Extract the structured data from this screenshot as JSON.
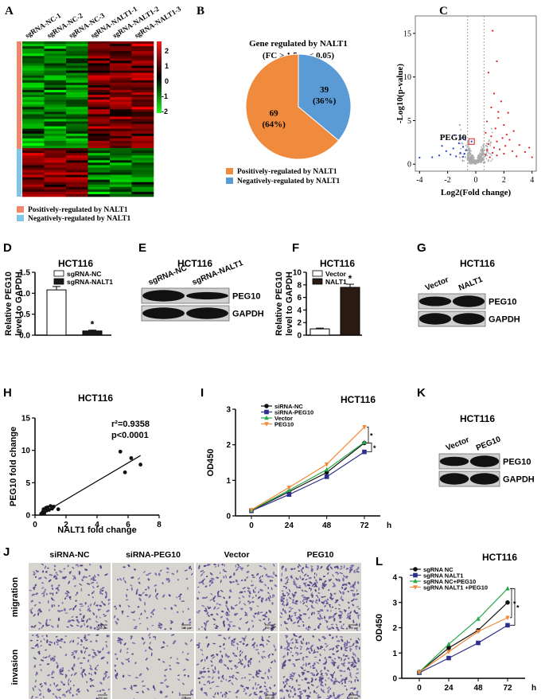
{
  "panel_labels": {
    "A": "A",
    "B": "B",
    "C": "C",
    "D": "D",
    "E": "E",
    "F": "F",
    "G": "G",
    "H": "H",
    "I": "I",
    "J": "J",
    "K": "K",
    "L": "L"
  },
  "heatmap": {
    "columns": [
      "sgRNA-NC-1",
      "sgRNA-NC-2",
      "sgRNA-NC-3",
      "sgRNA-NALT1-1",
      "sgRNA-NALT1-2",
      "sgRNA-NALT1-3"
    ],
    "scale_ticks": [
      "2",
      "1",
      "0",
      "-1",
      "-2"
    ],
    "legend": [
      {
        "label": "Positively-regulated by NALT1",
        "color": "#f0866a"
      },
      {
        "label": "Negatively-regulated by NALT1",
        "color": "#7fc6e8"
      }
    ],
    "colors": {
      "high": "#ff1a1a",
      "low": "#1aff1a",
      "mid": "#000000"
    }
  },
  "pie": {
    "title_line1": "Gene regulated by NALT1",
    "title_line2": "(FC > 1.5, p < 0.05)",
    "legend": [
      {
        "label": "Positively-regulated by NALT1",
        "color": "#f08a3c"
      },
      {
        "label": "Negatively-regulated by NALT1",
        "color": "#5b9bd5"
      }
    ]
  },
  "volcano_text": {
    "peg10_label": "PEG10"
  },
  "blots": {
    "E": {
      "title": "HCT116",
      "lanes": [
        "sgRNA-NC",
        "sgRNA-NALT1"
      ],
      "rows": [
        "PEG10",
        "GAPDH"
      ]
    },
    "G": {
      "title": "HCT116",
      "lanes": [
        "Vector",
        "NALT1"
      ],
      "rows": [
        "PEG10",
        "GAPDH"
      ]
    },
    "K": {
      "title": "HCT116",
      "lanes": [
        "Vector",
        "PEG10"
      ],
      "rows": [
        "PEG10",
        "GAPDH"
      ]
    }
  },
  "transwell": {
    "columns": [
      "siRNA-NC",
      "siRNA-PEG10",
      "Vector",
      "PEG10"
    ],
    "rows": [
      "migration",
      "invasion"
    ],
    "scale_bar": "200 μm",
    "density": [
      0.55,
      0.25,
      0.6,
      0.95,
      0.5,
      0.2,
      0.55,
      0.9
    ]
  },
  "star": "*",
  "chart_data": [
    {
      "id": "A",
      "type": "heatmap",
      "title": "",
      "columns": [
        "sgRNA-NC-1",
        "sgRNA-NC-2",
        "sgRNA-NC-3",
        "sgRNA-NALT1-1",
        "sgRNA-NALT1-2",
        "sgRNA-NALT1-3"
      ],
      "row_groups": [
        {
          "name": "Positively-regulated by NALT1",
          "count": 69
        },
        {
          "name": "Negatively-regulated by NALT1",
          "count": 39
        }
      ],
      "color_range": [
        -2,
        2
      ]
    },
    {
      "id": "B",
      "type": "pie",
      "title": "Gene regulated by NALT1",
      "subtitle": "(FC > 1.5, p < 0.05)",
      "slices": [
        {
          "label": "Positively-regulated by NALT1",
          "value": 69,
          "percent_label": "(64%)",
          "value_label": "69"
        },
        {
          "label": "Negatively-regulated by NALT1",
          "value": 39,
          "percent_label": "(36%)",
          "value_label": "39"
        }
      ]
    },
    {
      "id": "C",
      "type": "scatter",
      "title": "",
      "xlabel": "Log2(Fold change)",
      "ylabel": "-Log10(p-value)",
      "xlim": [
        -4.3,
        4.3
      ],
      "ylim": [
        -0.8,
        17
      ],
      "xticks": [
        -4,
        -2,
        0,
        2,
        4
      ],
      "yticks": [
        0,
        5,
        10,
        15
      ],
      "threshold_x": [
        -0.58,
        0.58
      ],
      "highlight": {
        "name": "PEG10",
        "x": -0.3,
        "y": 2.6
      },
      "series": [
        {
          "name": "",
          "color": "#e02020",
          "points": [
            [
              1.2,
              15.3
            ],
            [
              1.5,
              11.8
            ],
            [
              0.9,
              10.5
            ],
            [
              1.3,
              8.1
            ],
            [
              1.8,
              7.2
            ],
            [
              1.1,
              6.5
            ],
            [
              2.3,
              5.9
            ],
            [
              1.6,
              5.3
            ],
            [
              0.8,
              4.9
            ],
            [
              2.0,
              4.5
            ],
            [
              1.4,
              4.1
            ],
            [
              2.7,
              3.8
            ],
            [
              0.7,
              3.6
            ],
            [
              1.1,
              3.2
            ],
            [
              1.9,
              3.0
            ],
            [
              2.4,
              2.8
            ],
            [
              1.5,
              2.6
            ],
            [
              0.9,
              2.3
            ],
            [
              3.1,
              2.2
            ],
            [
              2.1,
              2.1
            ],
            [
              1.3,
              1.9
            ],
            [
              1.7,
              1.7
            ],
            [
              0.8,
              1.6
            ],
            [
              2.6,
              1.5
            ],
            [
              3.5,
              1.4
            ],
            [
              1.2,
              1.3
            ],
            [
              2.0,
              1.2
            ],
            [
              0.7,
              1.1
            ],
            [
              1.5,
              1.0
            ],
            [
              2.9,
              0.9
            ],
            [
              4.0,
              0.8
            ],
            [
              1.0,
              0.8
            ],
            [
              3.8,
              1.9
            ],
            [
              2.2,
              3.4
            ],
            [
              1.6,
              6.0
            ]
          ]
        },
        {
          "name": "",
          "color": "#2040d0",
          "points": [
            [
              -0.3,
              2.6
            ],
            [
              -1.2,
              2.4
            ],
            [
              -0.9,
              2.0
            ],
            [
              -1.6,
              1.8
            ],
            [
              -0.7,
              1.6
            ],
            [
              -2.1,
              1.5
            ],
            [
              -1.1,
              1.3
            ],
            [
              -0.8,
              1.2
            ],
            [
              -1.8,
              1.1
            ],
            [
              -2.6,
              1.0
            ],
            [
              -1.4,
              0.9
            ],
            [
              -0.9,
              0.85
            ],
            [
              -3.1,
              0.8
            ],
            [
              -4.0,
              0.75
            ],
            [
              -1.0,
              3.0
            ],
            [
              -2.4,
              2.1
            ],
            [
              -1.5,
              3.3
            ],
            [
              -0.75,
              2.8
            ]
          ]
        }
      ]
    },
    {
      "id": "D",
      "type": "bar",
      "title": "HCT116",
      "ylabel": "Relative PEG10 level to GAPDH",
      "categories": [
        "sgRNA-NC",
        "sgRNA-NALT1"
      ],
      "values": [
        1.08,
        0.1
      ],
      "errors": [
        0.08,
        0.02
      ],
      "ylim": [
        0,
        1.5
      ],
      "yticks": [
        0.0,
        0.5,
        1.0,
        1.5
      ],
      "colors": [
        "#ffffff",
        "#1a1a1a"
      ]
    },
    {
      "id": "F",
      "type": "bar",
      "title": "HCT116",
      "ylabel": "Relative PEG10 level to GAPDH",
      "categories": [
        "Vector",
        "NALT1"
      ],
      "values": [
        1.0,
        7.6
      ],
      "errors": [
        0.12,
        0.5
      ],
      "ylim": [
        0,
        10
      ],
      "yticks": [
        0,
        2,
        4,
        6,
        8,
        10
      ],
      "colors": [
        "#ffffff",
        "#2a1a12"
      ]
    },
    {
      "id": "H",
      "type": "scatter",
      "title": "HCT116",
      "xlabel": "NALT1 fold change",
      "ylabel": "PEG10 fold change",
      "xlim": [
        0,
        8
      ],
      "ylim": [
        0,
        15
      ],
      "xticks": [
        0,
        2,
        4,
        6,
        8
      ],
      "yticks": [
        0,
        5,
        10,
        15
      ],
      "annotation_r2": "r²=0.9358",
      "annotation_p": "p<0.0001",
      "fit": [
        [
          0.3,
          0.0
        ],
        [
          6.8,
          9.2
        ]
      ],
      "points": [
        [
          0.4,
          0.2
        ],
        [
          0.5,
          0.5
        ],
        [
          0.55,
          0.9
        ],
        [
          0.6,
          0.3
        ],
        [
          0.7,
          1.1
        ],
        [
          0.75,
          0.7
        ],
        [
          0.8,
          1.2
        ],
        [
          0.9,
          0.8
        ],
        [
          1.0,
          1.4
        ],
        [
          1.1,
          1.0
        ],
        [
          1.2,
          1.3
        ],
        [
          1.5,
          0.9
        ],
        [
          5.5,
          9.8
        ],
        [
          6.2,
          8.8
        ],
        [
          5.8,
          6.6
        ],
        [
          6.8,
          7.8
        ]
      ]
    },
    {
      "id": "I",
      "type": "line",
      "title": "HCT116",
      "xlabel": "h",
      "ylabel": "OD450",
      "x": [
        0,
        24,
        48,
        72
      ],
      "xticks": [
        0,
        24,
        48,
        72
      ],
      "ylim": [
        0,
        3
      ],
      "yticks": [
        0,
        1,
        2,
        3
      ],
      "series": [
        {
          "name": "siRNA-NC",
          "values": [
            0.15,
            0.68,
            1.22,
            2.05
          ],
          "color": "#111111",
          "marker": "circle"
        },
        {
          "name": "siRNA-PEG10",
          "values": [
            0.14,
            0.6,
            1.1,
            1.8
          ],
          "color": "#2e2e8e",
          "marker": "square"
        },
        {
          "name": "Vector",
          "values": [
            0.16,
            0.72,
            1.3,
            2.07
          ],
          "color": "#2aa84a",
          "marker": "triangle"
        },
        {
          "name": "PEG10",
          "values": [
            0.17,
            0.8,
            1.45,
            2.5
          ],
          "color": "#f08a3c",
          "marker": "tri-down"
        }
      ]
    },
    {
      "id": "L",
      "type": "line",
      "title": "HCT116",
      "xlabel": "h",
      "ylabel": "OD450",
      "x": [
        0,
        24,
        48,
        72
      ],
      "xticks": [
        0,
        24,
        48,
        72
      ],
      "ylim": [
        0,
        4
      ],
      "yticks": [
        0,
        1,
        2,
        3,
        4
      ],
      "series": [
        {
          "name": "sgRNA NC",
          "values": [
            0.25,
            1.2,
            1.9,
            3.0
          ],
          "color": "#111111",
          "marker": "circle"
        },
        {
          "name": "sgRNA NALT1",
          "values": [
            0.22,
            0.8,
            1.4,
            2.1
          ],
          "color": "#2e2e8e",
          "marker": "square"
        },
        {
          "name": "sgRNA NC+PEG10",
          "values": [
            0.25,
            1.35,
            2.35,
            3.55
          ],
          "color": "#2aa84a",
          "marker": "triangle"
        },
        {
          "name": "sgRNA NALT1 +PEG10",
          "values": [
            0.24,
            1.05,
            1.85,
            2.4
          ],
          "color": "#f08a3c",
          "marker": "tri-down"
        }
      ]
    }
  ]
}
